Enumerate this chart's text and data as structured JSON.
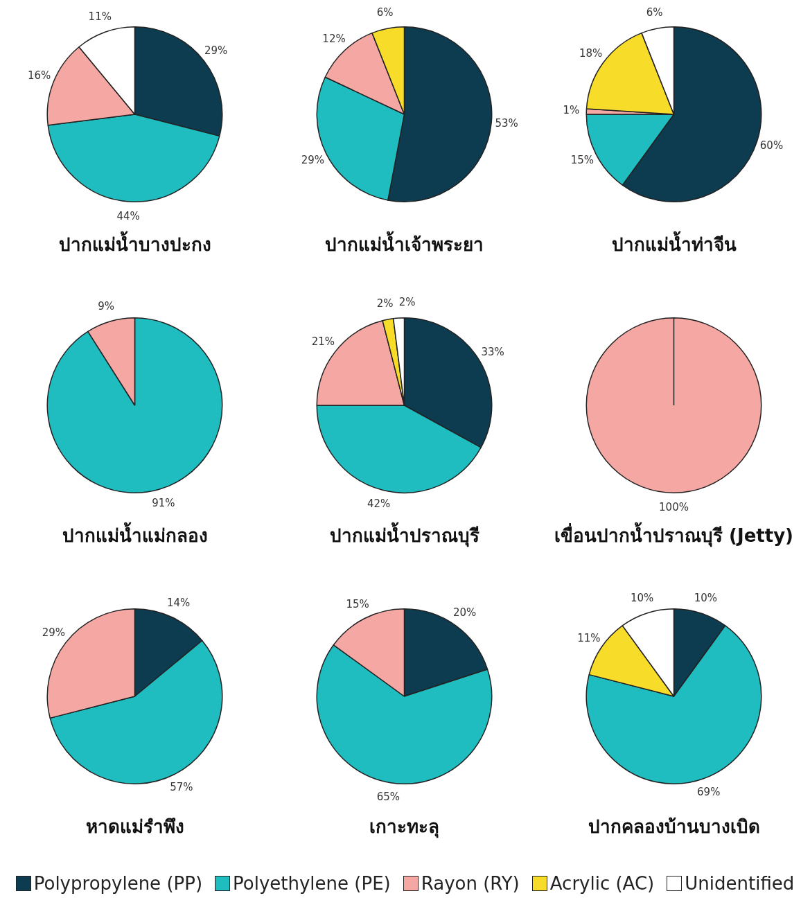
{
  "chart_data": [
    {
      "type": "pie",
      "title": "ปากแม่น้ำบางปะกง",
      "categories": [
        null,
        null,
        null,
        null,
        null
      ],
      "values": [
        29,
        44,
        16,
        0,
        11
      ],
      "colors": [
        "#0d3b4f",
        "#1fbcc0",
        "#f4a7a3",
        "#f8dc2a",
        "#ffffff"
      ],
      "value_labels": [
        "29%",
        "44%",
        "16%",
        null,
        "11%"
      ]
    },
    {
      "type": "pie",
      "title": "ปากแม่น้ำเจ้าพระยา",
      "categories": [
        null,
        null,
        null,
        null,
        null
      ],
      "values": [
        53,
        29,
        12,
        6,
        0
      ],
      "colors": [
        "#0d3b4f",
        "#1fbcc0",
        "#f4a7a3",
        "#f8dc2a",
        "#ffffff"
      ],
      "value_labels": [
        "53%",
        "29%",
        "12%",
        "6%",
        null
      ]
    },
    {
      "type": "pie",
      "title": "ปากแม่น้ำท่าจีน",
      "categories": [
        null,
        null,
        null,
        null,
        null
      ],
      "values": [
        60,
        15,
        1,
        18,
        6
      ],
      "colors": [
        "#0d3b4f",
        "#1fbcc0",
        "#f4a7a3",
        "#f8dc2a",
        "#ffffff"
      ],
      "value_labels": [
        "60%",
        "15%",
        "1%",
        "18%",
        "6%"
      ]
    },
    {
      "type": "pie",
      "title": "ปากแม่น้ำแม่กลอง",
      "categories": [
        null,
        null,
        null,
        null,
        null
      ],
      "values": [
        0,
        91,
        9,
        0,
        0
      ],
      "colors": [
        "#0d3b4f",
        "#1fbcc0",
        "#f4a7a3",
        "#f8dc2a",
        "#ffffff"
      ],
      "value_labels": [
        null,
        "91%",
        "9%",
        null,
        null
      ]
    },
    {
      "type": "pie",
      "title": "ปากแม่น้ำปราณบุรี",
      "categories": [
        null,
        null,
        null,
        null,
        null
      ],
      "values": [
        33,
        42,
        21,
        2,
        2
      ],
      "colors": [
        "#0d3b4f",
        "#1fbcc0",
        "#f4a7a3",
        "#f8dc2a",
        "#ffffff"
      ],
      "value_labels": [
        "33%",
        "42%",
        "21%",
        "2%",
        "2%"
      ]
    },
    {
      "type": "pie",
      "title": "เขื่อนปากน้ำปราณบุรี (Jetty)",
      "categories": [
        null,
        null,
        null,
        null,
        null
      ],
      "values": [
        0,
        0,
        100,
        0,
        0
      ],
      "colors": [
        "#0d3b4f",
        "#1fbcc0",
        "#f4a7a3",
        "#f8dc2a",
        "#ffffff"
      ],
      "value_labels": [
        null,
        null,
        "100%",
        null,
        null
      ]
    },
    {
      "type": "pie",
      "title": "หาดแม่รำพึง",
      "categories": [
        null,
        null,
        null,
        null,
        null
      ],
      "values": [
        14,
        57,
        29,
        0,
        0
      ],
      "colors": [
        "#0d3b4f",
        "#1fbcc0",
        "#f4a7a3",
        "#f8dc2a",
        "#ffffff"
      ],
      "value_labels": [
        "14%",
        "57%",
        "29%",
        null,
        null
      ]
    },
    {
      "type": "pie",
      "title": "เกาะทะลุ",
      "categories": [
        null,
        null,
        null,
        null,
        null
      ],
      "values": [
        20,
        65,
        15,
        0,
        0
      ],
      "colors": [
        "#0d3b4f",
        "#1fbcc0",
        "#f4a7a3",
        "#f8dc2a",
        "#ffffff"
      ],
      "value_labels": [
        "20%",
        "65%",
        "15%",
        null,
        null
      ]
    },
    {
      "type": "pie",
      "title": "ปากคลองบ้านบางเบิด",
      "categories": [
        "Polypropylene (PP)",
        "Polyethylene (PE)",
        "Rayon (RY)",
        "Acrylic (AC)",
        "Unidentified"
      ],
      "values": [
        10,
        69,
        0,
        11,
        10
      ],
      "colors": [
        "#0d3b4f",
        "#1fbcc0",
        "#f4a7a3",
        "#f8dc2a",
        "#ffffff"
      ],
      "value_labels": [
        "10%",
        "69%",
        null,
        "11%",
        "10%"
      ],
      "legend": "bottom"
    }
  ]
}
